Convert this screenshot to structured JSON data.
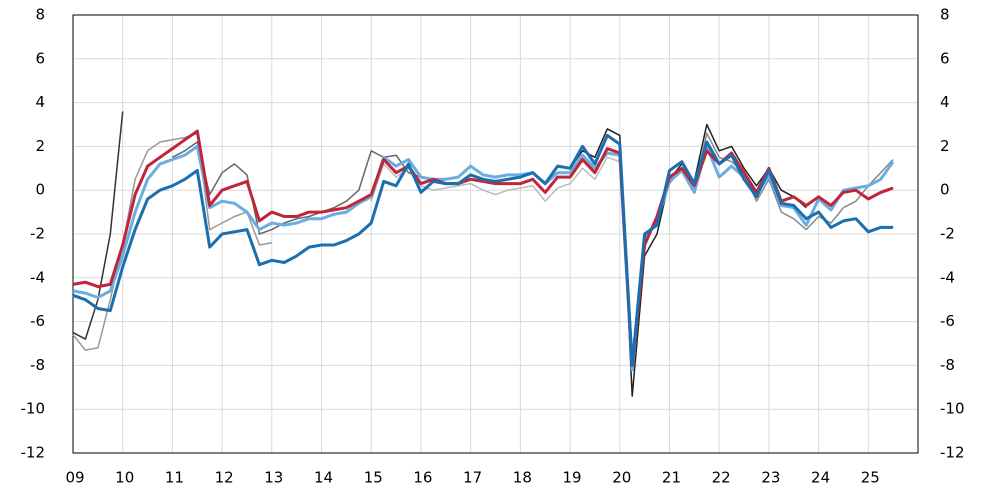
{
  "chart_data": {
    "type": "line",
    "x": [
      2009,
      2009.25,
      2009.5,
      2009.75,
      2010,
      2010.25,
      2010.5,
      2010.75,
      2011,
      2011.25,
      2011.5,
      2011.75,
      2012,
      2012.25,
      2012.5,
      2012.75,
      2013,
      2013.25,
      2013.5,
      2013.75,
      2014,
      2014.25,
      2014.5,
      2014.75,
      2015,
      2015.25,
      2015.5,
      2015.75,
      2016,
      2016.25,
      2016.5,
      2016.75,
      2017,
      2017.25,
      2017.5,
      2017.75,
      2018,
      2018.25,
      2018.5,
      2018.75,
      2019,
      2019.25,
      2019.5,
      2019.75,
      2020,
      2020.25,
      2020.5,
      2020.75,
      2021,
      2021.25,
      2021.5,
      2021.75,
      2022,
      2022.25,
      2022.5,
      2022.75,
      2023,
      2023.25,
      2023.5,
      2023.75,
      2024,
      2024.25,
      2024.5,
      2024.75,
      2025,
      2025.25,
      2025.5
    ],
    "series": [
      {
        "color": "#333333",
        "values": [
          -6.5,
          -6.8,
          -5.0,
          -2.0,
          3.6,
          null,
          null,
          null,
          null,
          null,
          null,
          null,
          null,
          null,
          null,
          null,
          null,
          null,
          null,
          null,
          null,
          null,
          null,
          null,
          null,
          null,
          null,
          null,
          null,
          null,
          null,
          null,
          null,
          null,
          null,
          null,
          null,
          null,
          null,
          null,
          null,
          null,
          null,
          null,
          null,
          null,
          null,
          null,
          null,
          null,
          null,
          null,
          null,
          null,
          null,
          null,
          null,
          null,
          null,
          null,
          null,
          null,
          null,
          null,
          null,
          null,
          null
        ]
      },
      {
        "color": "#999999",
        "values": [
          -6.6,
          -7.3,
          -7.2,
          -5.0,
          -2.5,
          0.5,
          1.8,
          2.2,
          2.3,
          2.4,
          2.6,
          -1.8,
          -1.5,
          -1.2,
          -1.0,
          -2.5,
          -2.4,
          null,
          null,
          null,
          null,
          null,
          null,
          null,
          null,
          null,
          null,
          null,
          null,
          null,
          null,
          null,
          null,
          null,
          null,
          null,
          null,
          null,
          null,
          null,
          null,
          null,
          null,
          null,
          null,
          null,
          null,
          null,
          null,
          null,
          null,
          null,
          null,
          null,
          null,
          null,
          null,
          null,
          null,
          null,
          null,
          null,
          null,
          null,
          null,
          null,
          null
        ]
      },
      {
        "color": "#666666",
        "values": [
          null,
          null,
          null,
          null,
          null,
          null,
          null,
          null,
          1.5,
          1.8,
          2.2,
          -0.2,
          0.8,
          1.2,
          0.7,
          -2.0,
          -1.8,
          -1.5,
          -1.3,
          -1.2,
          -1.0,
          -0.8,
          -0.5,
          0.0,
          1.8,
          1.5,
          1.6,
          0.8,
          0.6,
          null,
          null,
          null,
          null,
          null,
          null,
          null,
          null,
          null,
          null,
          null,
          null,
          null,
          null,
          null,
          null,
          null,
          null,
          null,
          null,
          null,
          null,
          null,
          null,
          null,
          null,
          null,
          null,
          null,
          null,
          null,
          null,
          null,
          null,
          null,
          null,
          null,
          null
        ]
      },
      {
        "color": "#bbbbbb",
        "values": [
          null,
          null,
          null,
          null,
          null,
          null,
          null,
          null,
          null,
          null,
          null,
          null,
          null,
          null,
          null,
          null,
          null,
          null,
          null,
          null,
          null,
          null,
          null,
          null,
          -0.5,
          1.2,
          0.6,
          1.0,
          0.2,
          0.0,
          0.1,
          0.2,
          0.3,
          0.0,
          -0.2,
          0.0,
          0.1,
          0.2,
          -0.5,
          0.1,
          0.3,
          1.0,
          0.5,
          1.5,
          1.3,
          null,
          null,
          null,
          null,
          null,
          null,
          null,
          null,
          null,
          null,
          null,
          null,
          null,
          null,
          null,
          null,
          null,
          null,
          null,
          null,
          null,
          null
        ]
      },
      {
        "color": "#222222",
        "values": [
          null,
          null,
          null,
          null,
          null,
          null,
          null,
          null,
          null,
          null,
          null,
          null,
          null,
          null,
          null,
          null,
          null,
          null,
          null,
          null,
          null,
          null,
          null,
          null,
          null,
          null,
          null,
          null,
          null,
          null,
          null,
          null,
          null,
          null,
          null,
          null,
          null,
          null,
          null,
          null,
          1.0,
          1.8,
          1.5,
          2.8,
          2.5,
          -9.4,
          -3.0,
          -2.0,
          0.5,
          1.2,
          0.4,
          3.0,
          1.8,
          2.0,
          1.0,
          0.2,
          1.0,
          0.0,
          -0.3,
          -0.8,
          null,
          null,
          null,
          null,
          null,
          null,
          null
        ]
      },
      {
        "color": "#888888",
        "values": [
          null,
          null,
          null,
          null,
          null,
          null,
          null,
          null,
          null,
          null,
          null,
          null,
          null,
          null,
          null,
          null,
          null,
          null,
          null,
          null,
          null,
          null,
          null,
          null,
          null,
          null,
          null,
          null,
          null,
          null,
          null,
          null,
          null,
          null,
          null,
          null,
          null,
          null,
          null,
          null,
          null,
          null,
          null,
          null,
          null,
          null,
          null,
          null,
          0.3,
          1.0,
          0.0,
          2.6,
          1.5,
          1.3,
          0.8,
          -0.5,
          0.5,
          -1.0,
          -1.3,
          -1.8,
          -1.2,
          -1.5,
          -0.8,
          -0.5,
          0.2,
          0.8,
          1.4
        ]
      },
      {
        "color": "#6aaee0",
        "values": [
          -4.6,
          -4.7,
          -4.9,
          -4.6,
          -3.0,
          -1.0,
          0.5,
          1.2,
          1.4,
          1.6,
          2.0,
          -0.8,
          -0.5,
          -0.6,
          -1.0,
          -1.8,
          -1.5,
          -1.6,
          -1.5,
          -1.3,
          -1.3,
          -1.1,
          -1.0,
          -0.6,
          -0.3,
          1.5,
          1.1,
          1.4,
          0.6,
          0.5,
          0.5,
          0.6,
          1.1,
          0.7,
          0.6,
          0.7,
          0.7,
          0.8,
          0.3,
          0.8,
          0.8,
          1.6,
          1.0,
          1.7,
          1.6,
          -8.2,
          -2.2,
          -1.4,
          0.4,
          0.9,
          -0.1,
          2.0,
          0.6,
          1.1,
          0.6,
          -0.2,
          0.7,
          -0.7,
          -0.8,
          -1.6,
          -0.4,
          -0.9,
          0.0,
          0.1,
          0.2,
          0.5,
          1.3
        ]
      },
      {
        "color": "#c0263a",
        "values": [
          -4.3,
          -4.2,
          -4.4,
          -4.3,
          -2.5,
          -0.2,
          1.1,
          1.5,
          1.9,
          2.3,
          2.7,
          -0.7,
          0.0,
          0.2,
          0.4,
          -1.4,
          -1.0,
          -1.2,
          -1.2,
          -1.0,
          -1.0,
          -0.9,
          -0.8,
          -0.5,
          -0.2,
          1.4,
          0.8,
          1.1,
          0.3,
          0.5,
          0.3,
          0.3,
          0.5,
          0.4,
          0.3,
          0.3,
          0.3,
          0.5,
          -0.1,
          0.6,
          0.6,
          1.4,
          0.8,
          1.9,
          1.7,
          -8.0,
          -2.5,
          -1.2,
          0.6,
          1.0,
          0.2,
          1.8,
          1.2,
          1.7,
          0.8,
          -0.1,
          1.0,
          -0.5,
          -0.3,
          -0.7,
          -0.3,
          -0.7,
          -0.1,
          0.0,
          -0.4,
          -0.1,
          0.1
        ]
      },
      {
        "color": "#1a6fb0",
        "values": [
          -4.8,
          -5.0,
          -5.4,
          -5.5,
          -3.5,
          -1.8,
          -0.4,
          0.0,
          0.2,
          0.5,
          0.9,
          -2.6,
          -2.0,
          -1.9,
          -1.8,
          -3.4,
          -3.2,
          -3.3,
          -3.0,
          -2.6,
          -2.5,
          -2.5,
          -2.3,
          -2.0,
          -1.5,
          0.4,
          0.2,
          1.2,
          -0.1,
          0.4,
          0.3,
          0.3,
          0.7,
          0.5,
          0.4,
          0.5,
          0.6,
          0.8,
          0.3,
          1.1,
          1.0,
          2.0,
          1.2,
          2.5,
          2.1,
          -8.0,
          -2.0,
          -1.6,
          0.9,
          1.3,
          0.3,
          2.2,
          1.2,
          1.6,
          0.5,
          -0.3,
          0.9,
          -0.6,
          -0.7,
          -1.3,
          -1.0,
          -1.7,
          -1.4,
          -1.3,
          -1.9,
          -1.7,
          -1.7
        ]
      }
    ],
    "xlim": [
      2009,
      2026
    ],
    "xticks": [
      {
        "value": 2009,
        "label": "09"
      },
      {
        "value": 2010,
        "label": "10"
      },
      {
        "value": 2011,
        "label": "11"
      },
      {
        "value": 2012,
        "label": "12"
      },
      {
        "value": 2013,
        "label": "13"
      },
      {
        "value": 2014,
        "label": "14"
      },
      {
        "value": 2015,
        "label": "15"
      },
      {
        "value": 2016,
        "label": "16"
      },
      {
        "value": 2017,
        "label": "17"
      },
      {
        "value": 2018,
        "label": "18"
      },
      {
        "value": 2019,
        "label": "19"
      },
      {
        "value": 2020,
        "label": "20"
      },
      {
        "value": 2021,
        "label": "21"
      },
      {
        "value": 2022,
        "label": "22"
      },
      {
        "value": 2023,
        "label": "23"
      },
      {
        "value": 2024,
        "label": "24"
      },
      {
        "value": 2025,
        "label": "25"
      }
    ],
    "ylim": [
      -12,
      8
    ],
    "yticks": [
      -12,
      -10,
      -8,
      -6,
      -4,
      -2,
      0,
      2,
      4,
      6,
      8
    ],
    "y2lim": [
      -12,
      8
    ],
    "y2ticks": [
      -12,
      -10,
      -8,
      -6,
      -4,
      -2,
      0,
      2,
      4,
      6,
      8
    ],
    "grid": true
  }
}
